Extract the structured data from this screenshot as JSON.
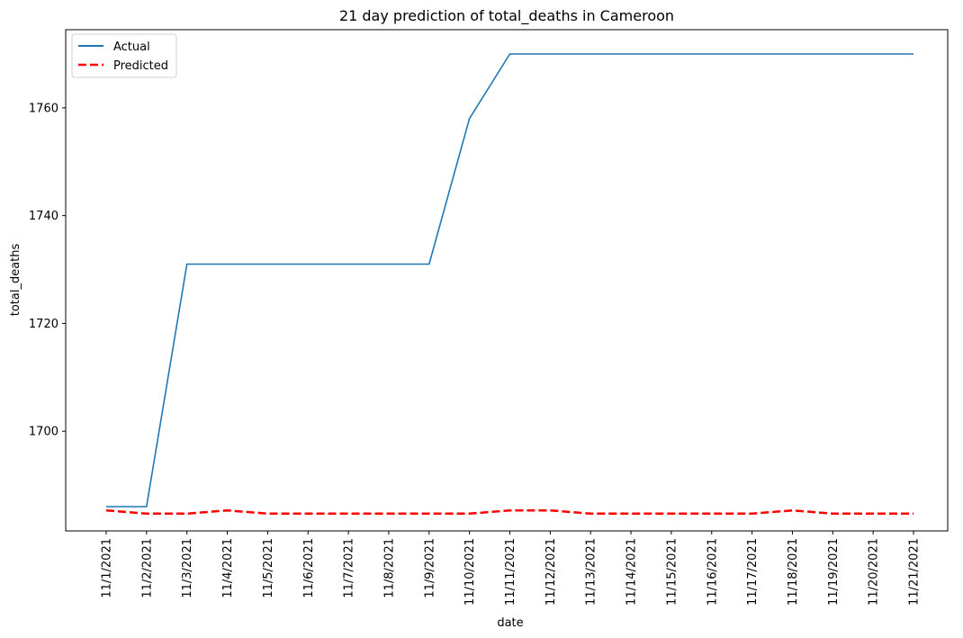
{
  "chart_data": {
    "type": "line",
    "title": "21 day prediction of total_deaths in Cameroon",
    "xlabel": "date",
    "ylabel": "total_deaths",
    "categories": [
      "11/1/2021",
      "11/2/2021",
      "11/3/2021",
      "11/4/2021",
      "11/5/2021",
      "11/6/2021",
      "11/7/2021",
      "11/8/2021",
      "11/9/2021",
      "11/10/2021",
      "11/11/2021",
      "11/12/2021",
      "11/13/2021",
      "11/14/2021",
      "11/15/2021",
      "11/16/2021",
      "11/17/2021",
      "11/18/2021",
      "11/19/2021",
      "11/20/2021",
      "11/21/2021"
    ],
    "series": [
      {
        "name": "Actual",
        "color": "#1f77b4",
        "style": "solid",
        "values": [
          1686,
          1686,
          1731,
          1731,
          1731,
          1731,
          1731,
          1731,
          1731,
          1758,
          1770,
          1770,
          1770,
          1770,
          1770,
          1770,
          1770,
          1770,
          1770,
          1770,
          1770
        ]
      },
      {
        "name": "Predicted",
        "color": "#ff0000",
        "style": "dashed",
        "values": [
          1685.3,
          1684.7,
          1684.7,
          1685.3,
          1684.7,
          1684.7,
          1684.7,
          1684.7,
          1684.7,
          1684.7,
          1685.3,
          1685.3,
          1684.7,
          1684.7,
          1684.7,
          1684.7,
          1684.7,
          1685.3,
          1684.7,
          1684.7,
          1684.7
        ]
      }
    ],
    "yticks": [
      1700,
      1720,
      1740,
      1760
    ],
    "ylim": [
      1681.5,
      1774.5
    ],
    "grid": false,
    "legend_position": "upper left"
  }
}
